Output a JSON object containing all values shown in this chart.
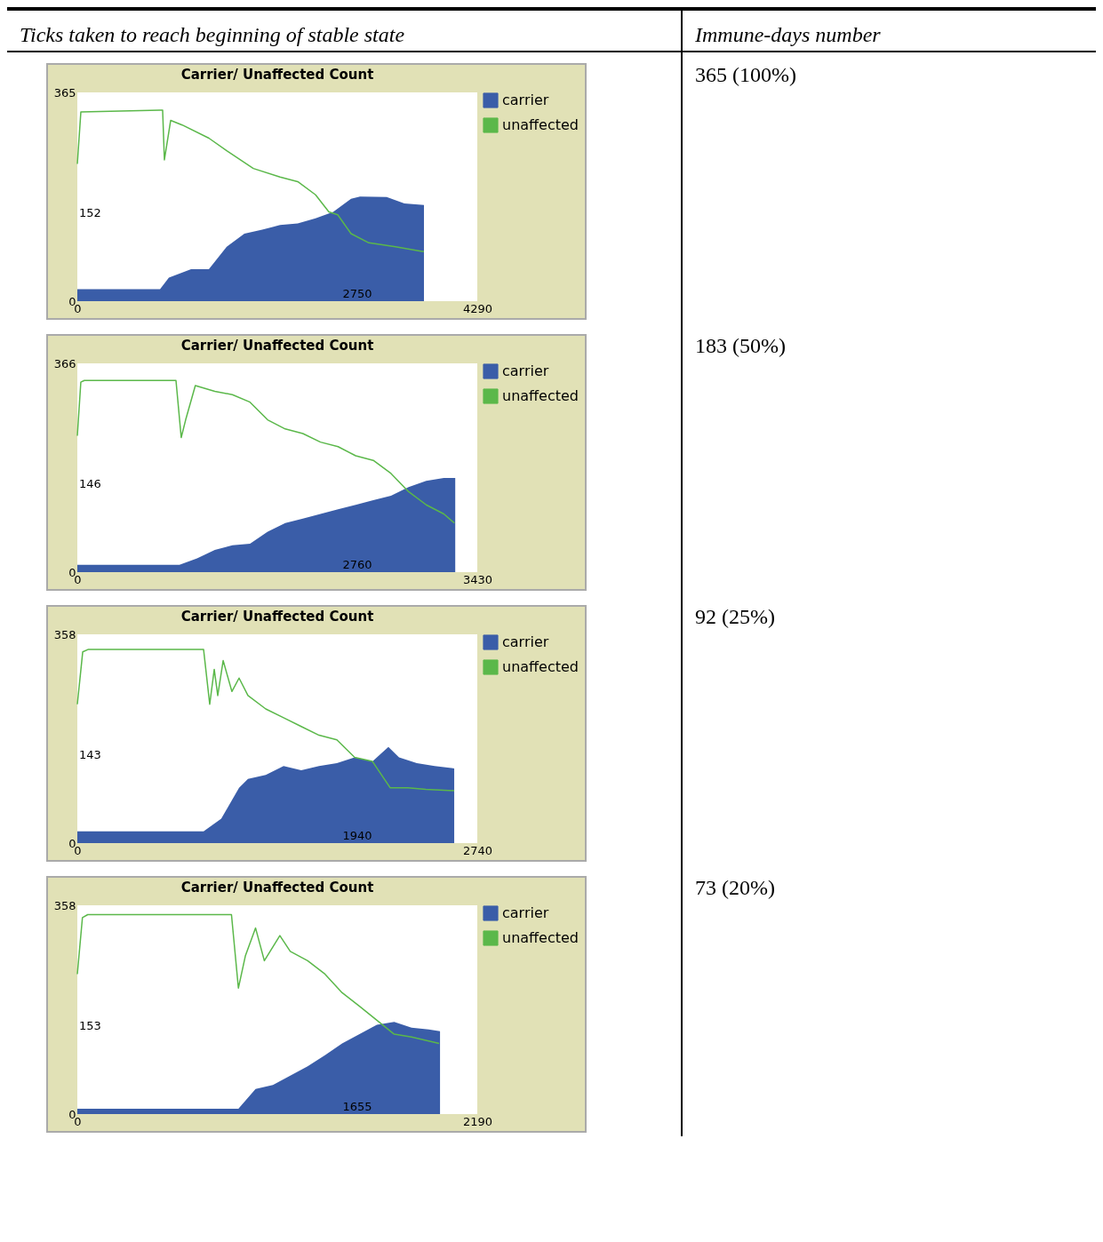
{
  "chart_data": [
    {
      "type": "line",
      "title": "Carrier/ Unaffected Count",
      "xlim": [
        0,
        4290
      ],
      "xticks": [
        0,
        4290
      ],
      "ylim": [
        0,
        365
      ],
      "yticks": [
        0,
        365
      ],
      "legend": "top right",
      "series": [
        {
          "name": "carrier",
          "type": "area",
          "color": "#3a5da8",
          "x": [
            0,
            887,
            982,
            1220,
            1411,
            1602,
            1792,
            1983,
            2174,
            2364,
            2555,
            2745,
            2936,
            3032,
            3318,
            3508,
            3718
          ],
          "values": [
            21,
            21,
            41,
            56,
            56,
            95,
            118,
            125,
            133,
            136,
            145,
            156,
            179,
            183,
            182,
            171,
            168
          ]
        },
        {
          "name": "unaffected",
          "type": "line",
          "color": "#5bb84a",
          "x": [
            0,
            38,
            887,
            915,
            934,
            1001,
            1125,
            1411,
            1602,
            1888,
            2174,
            2364,
            2555,
            2698,
            2793,
            2936,
            3127,
            3413,
            3699,
            3718
          ],
          "values": [
            240,
            331,
            334,
            334,
            247,
            316,
            308,
            285,
            263,
            232,
            217,
            209,
            186,
            156,
            151,
            118,
            102,
            95,
            87,
            87
          ]
        }
      ],
      "annotations": [
        "Ticks taken to reach beginning of stable state",
        "Immune-days number",
        "152",
        "2750",
        "365 (100%)"
      ]
    },
    {
      "type": "line",
      "title": "Carrier/ Unaffected Count",
      "xlim": [
        0,
        3430
      ],
      "xticks": [
        0,
        3430
      ],
      "ylim": [
        0,
        366
      ],
      "yticks": [
        0,
        366
      ],
      "legend": "top right",
      "series": [
        {
          "name": "carrier",
          "type": "area",
          "color": "#3a5da8",
          "x": [
            0,
            876,
            1027,
            1179,
            1330,
            1481,
            1632,
            1783,
            1934,
            2085,
            2236,
            2387,
            2538,
            2690,
            2841,
            2992,
            3143,
            3241
          ],
          "values": [
            13,
            13,
            24,
            39,
            47,
            50,
            71,
            86,
            94,
            102,
            110,
            118,
            126,
            134,
            149,
            160,
            165,
            165
          ]
        },
        {
          "name": "unaffected",
          "type": "line",
          "color": "#5bb84a",
          "x": [
            0,
            30,
            60,
            846,
            891,
            929,
            1012,
            1179,
            1330,
            1481,
            1632,
            1783,
            1934,
            2085,
            2236,
            2387,
            2538,
            2690,
            2841,
            2992,
            3143,
            3234
          ],
          "values": [
            239,
            333,
            336,
            336,
            236,
            267,
            327,
            317,
            311,
            298,
            267,
            251,
            243,
            228,
            220,
            204,
            196,
            173,
            141,
            118,
            102,
            86
          ]
        }
      ],
      "annotations": [
        "146",
        "2760",
        "183 (50%)"
      ]
    },
    {
      "type": "line",
      "title": "Carrier/ Unaffected Count",
      "xlim": [
        0,
        2740
      ],
      "xticks": [
        0,
        2740
      ],
      "ylim": [
        0,
        358
      ],
      "yticks": [
        0,
        358
      ],
      "legend": "top right",
      "series": [
        {
          "name": "carrier",
          "type": "area",
          "color": "#3a5da8",
          "x": [
            0,
            865,
            986,
            1108,
            1169,
            1291,
            1413,
            1534,
            1656,
            1778,
            1900,
            2022,
            2131,
            2204,
            2326,
            2448,
            2582
          ],
          "values": [
            20,
            20,
            42,
            95,
            110,
            117,
            132,
            125,
            132,
            137,
            147,
            140,
            165,
            147,
            137,
            132,
            128
          ]
        },
        {
          "name": "unaffected",
          "type": "line",
          "color": "#5bb84a",
          "x": [
            0,
            37,
            73,
            865,
            907,
            938,
            962,
            999,
            1059,
            1108,
            1169,
            1291,
            1413,
            1534,
            1656,
            1778,
            1900,
            2022,
            2143,
            2265,
            2387,
            2582
          ],
          "values": [
            238,
            328,
            332,
            332,
            238,
            298,
            253,
            313,
            260,
            283,
            253,
            230,
            215,
            200,
            185,
            177,
            147,
            140,
            95,
            95,
            92,
            90
          ]
        }
      ],
      "annotations": [
        "143",
        "1940",
        "92 (25%)"
      ]
    },
    {
      "type": "line",
      "title": "Carrier/ Unaffected Count",
      "xlim": [
        0,
        2190
      ],
      "xticks": [
        0,
        2190
      ],
      "ylim": [
        0,
        358
      ],
      "yticks": [
        0,
        358
      ],
      "legend": "top right",
      "series": [
        {
          "name": "carrier",
          "type": "area",
          "color": "#3a5da8",
          "x": [
            0,
            882,
            976,
            1071,
            1166,
            1261,
            1356,
            1450,
            1545,
            1640,
            1735,
            1830,
            1924,
            1986
          ],
          "values": [
            9,
            9,
            43,
            50,
            66,
            82,
            101,
            121,
            137,
            153,
            158,
            148,
            145,
            142
          ]
        },
        {
          "name": "unaffected",
          "type": "line",
          "color": "#5bb84a",
          "x": [
            0,
            28,
            57,
            844,
            882,
            920,
            976,
            1024,
            1109,
            1166,
            1261,
            1356,
            1450,
            1545,
            1640,
            1735,
            1830,
            1981
          ],
          "values": [
            240,
            337,
            342,
            342,
            216,
            271,
            319,
            263,
            306,
            279,
            263,
            240,
            208,
            185,
            161,
            137,
            132,
            121
          ]
        }
      ],
      "annotations": [
        "153",
        "1655",
        "73 (20%)"
      ]
    }
  ]
}
